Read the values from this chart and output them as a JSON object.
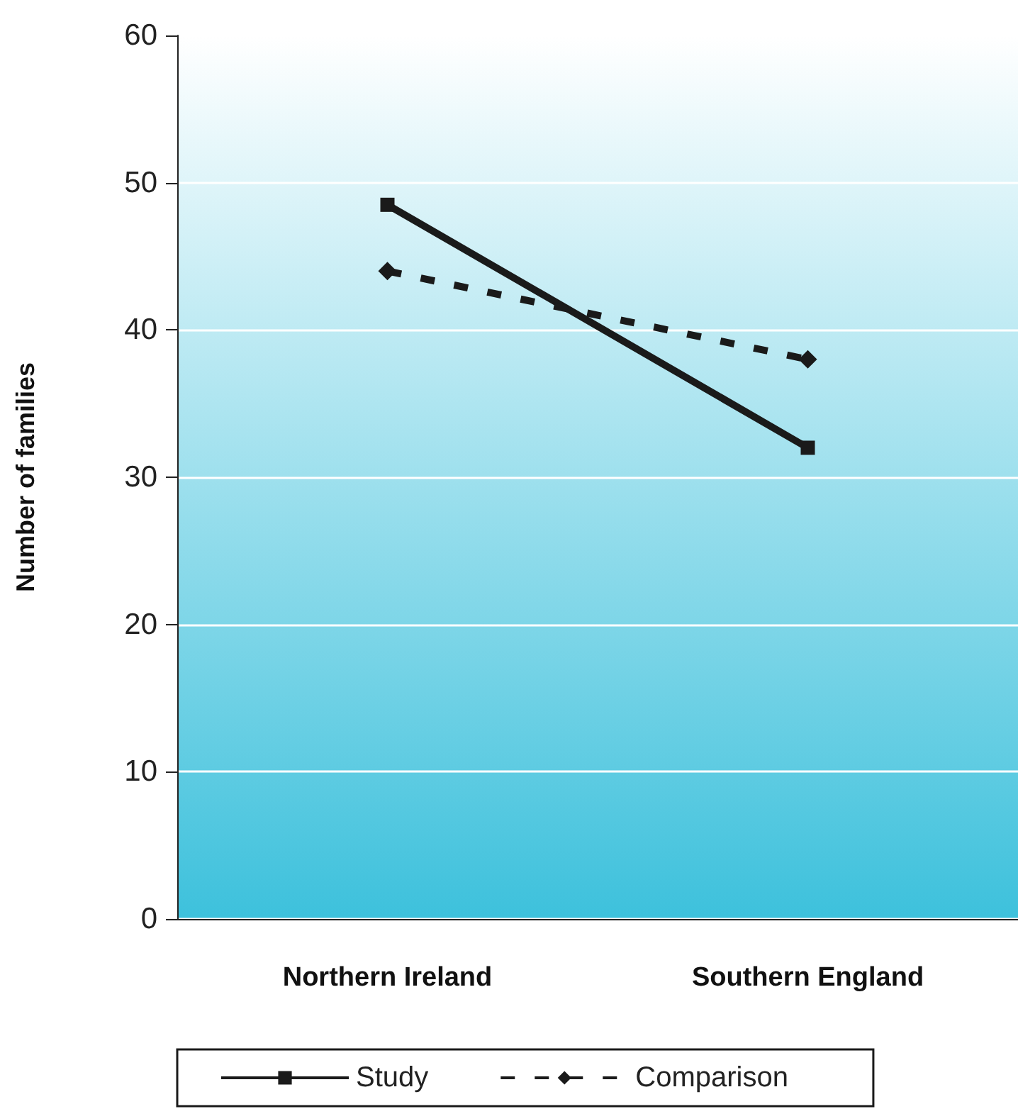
{
  "chart_data": {
    "type": "line",
    "ylabel": "Number of families",
    "categories": [
      "Northern Ireland",
      "Southern England"
    ],
    "series": [
      {
        "name": "Study",
        "color": "#1a1a1a",
        "values": [
          48.5,
          32
        ],
        "marker": "square",
        "line_style": "solid"
      },
      {
        "name": "Comparison",
        "color": "#1a1a1a",
        "values": [
          44,
          38
        ],
        "marker": "diamond",
        "line_style": "dashed"
      }
    ],
    "ylim": [
      0,
      60
    ],
    "yticks": [
      0,
      10,
      20,
      30,
      40,
      50,
      60
    ],
    "grid": "y",
    "legend": "bottom"
  }
}
